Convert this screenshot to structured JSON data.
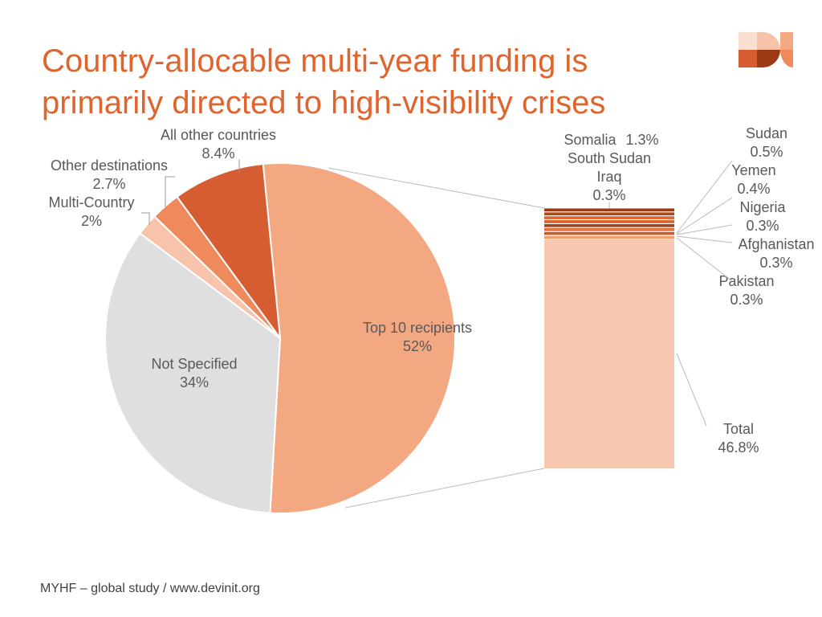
{
  "title": "Country-allocable multi-year funding is primarily directed to high-visibility crises",
  "footer": "MYHF – global study / www.devinit.org",
  "chart_data": {
    "type": "pie",
    "subtype": "bar-of-pie",
    "pie": [
      {
        "name": "Top 10 recipients",
        "value": 52,
        "label": "52%",
        "color": "#f4a882"
      },
      {
        "name": "Not Specified",
        "value": 34,
        "label": "34%",
        "color": "#e0dfe0"
      },
      {
        "name": "Multi-Country",
        "value": 2,
        "label": "2%",
        "color": "#f7c3aa"
      },
      {
        "name": "Other destinations",
        "value": 2.7,
        "label": "2.7%",
        "color": "#ee8a5c"
      },
      {
        "name": "All other countries",
        "value": 8.4,
        "label": "8.4%",
        "color": "#d65c32"
      }
    ],
    "bar": [
      {
        "name": "Total",
        "value": 46.8,
        "label": "46.8%",
        "color": "#f8c8b0"
      },
      {
        "name": "Pakistan",
        "value": 0.3,
        "label": "0.3%",
        "color": "#f0a070"
      },
      {
        "name": "Afghanistan",
        "value": 0.3,
        "label": "0.3%",
        "color": "#c85a2a"
      },
      {
        "name": "Nigeria",
        "value": 0.3,
        "label": "0.3%",
        "color": "#e07040"
      },
      {
        "name": "Yemen",
        "value": 0.4,
        "label": "0.4%",
        "color": "#a8441c"
      },
      {
        "name": "Sudan",
        "value": 0.5,
        "label": "0.5%",
        "color": "#d8602c"
      },
      {
        "name": "Iraq",
        "value": 0.5,
        "label": "",
        "color": "#e0642e"
      },
      {
        "name": "South Sudan",
        "value": 0.6,
        "label": "",
        "color": "#b04818"
      },
      {
        "name": "Somalia",
        "value": 1.3,
        "label": "1.3%",
        "color": "#9c3a16"
      }
    ],
    "overlapping_text": "0.3%"
  },
  "logo": {
    "colors": [
      "#fbe0d2",
      "#f6c3a8",
      "#f4a882",
      "#d65c32",
      "#9c3a16",
      "#ee8a5c"
    ]
  }
}
